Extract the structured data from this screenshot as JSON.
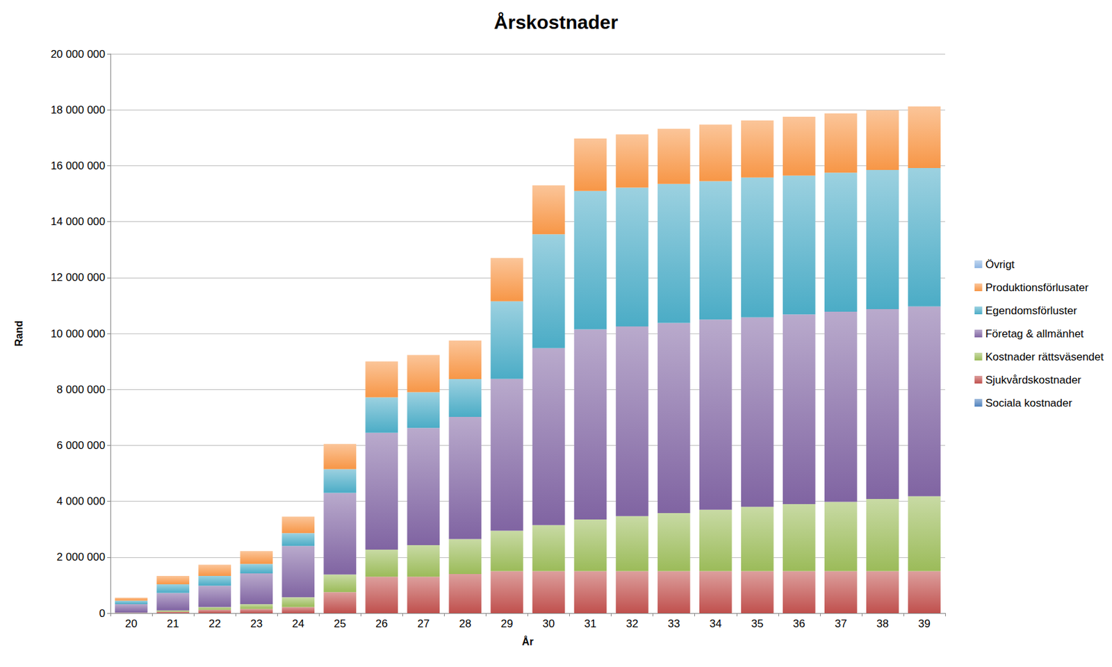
{
  "chart_data": {
    "type": "bar",
    "title": "Årskostnader",
    "x_label": "År",
    "y_label": "Rand",
    "stacked": true,
    "grid": true,
    "legend": "right",
    "categories": [
      "20",
      "21",
      "22",
      "23",
      "24",
      "25",
      "26",
      "27",
      "28",
      "29",
      "30",
      "31",
      "32",
      "33",
      "34",
      "35",
      "36",
      "37",
      "38",
      "39"
    ],
    "ylim": [
      0,
      20000000
    ],
    "yticks": [
      0,
      {
        "value": 2000000,
        "label": "2 000 000"
      },
      {
        "value": 4000000,
        "label": "4 000 000"
      },
      {
        "value": 6000000,
        "label": "6 000 000"
      },
      {
        "value": 8000000,
        "label": "8 000 000"
      },
      {
        "value": 10000000,
        "label": "10 000 000"
      },
      {
        "value": 12000000,
        "label": "12 000 000"
      },
      {
        "value": 14000000,
        "label": "14 000 000"
      },
      {
        "value": 16000000,
        "label": "16 000 000"
      },
      {
        "value": 18000000,
        "label": "18 000 000"
      },
      {
        "value": 20000000,
        "label": "20 000 000"
      }
    ],
    "series": [
      {
        "name": "Sociala kostnader",
        "color": "#4f81bd",
        "values": [
          0,
          0,
          0,
          0,
          0,
          0,
          0,
          0,
          0,
          0,
          0,
          0,
          0,
          0,
          0,
          0,
          0,
          0,
          0,
          0
        ]
      },
      {
        "name": "Sjukvårdskostnader",
        "color": "#c0504d",
        "values": [
          10000,
          50000,
          120000,
          150000,
          220000,
          750000,
          1300000,
          1300000,
          1400000,
          1500000,
          1500000,
          1500000,
          1500000,
          1500000,
          1500000,
          1500000,
          1500000,
          1500000,
          1500000,
          1500000
        ]
      },
      {
        "name": "Kostnader rättsväsendet",
        "color": "#9bbb59",
        "values": [
          10000,
          50000,
          100000,
          170000,
          350000,
          630000,
          970000,
          1130000,
          1250000,
          1450000,
          1650000,
          1850000,
          1970000,
          2080000,
          2200000,
          2300000,
          2400000,
          2480000,
          2580000,
          2680000
        ]
      },
      {
        "name": "Företag & allmänhet",
        "color": "#8064a2",
        "values": [
          300000,
          620000,
          760000,
          1100000,
          1830000,
          2920000,
          4180000,
          4190000,
          4370000,
          5430000,
          6330000,
          6800000,
          6780000,
          6800000,
          6800000,
          6780000,
          6780000,
          6800000,
          6790000,
          6790000
        ]
      },
      {
        "name": "Egendomsförluster",
        "color": "#4bacc6",
        "values": [
          130000,
          310000,
          350000,
          340000,
          460000,
          850000,
          1270000,
          1280000,
          1350000,
          2770000,
          4070000,
          4950000,
          4970000,
          4970000,
          4950000,
          5000000,
          4970000,
          4970000,
          4980000,
          4950000
        ]
      },
      {
        "name": "Produktionsförlusater",
        "color": "#f79646",
        "values": [
          100000,
          300000,
          400000,
          460000,
          590000,
          900000,
          1280000,
          1330000,
          1380000,
          1550000,
          1750000,
          1870000,
          1900000,
          1970000,
          2020000,
          2040000,
          2100000,
          2120000,
          2140000,
          2200000
        ]
      },
      {
        "name": "Övrigt",
        "color": "#8db4e2",
        "values": [
          0,
          0,
          0,
          0,
          0,
          0,
          0,
          0,
          0,
          0,
          0,
          0,
          0,
          0,
          0,
          0,
          0,
          0,
          0,
          0
        ]
      }
    ]
  }
}
